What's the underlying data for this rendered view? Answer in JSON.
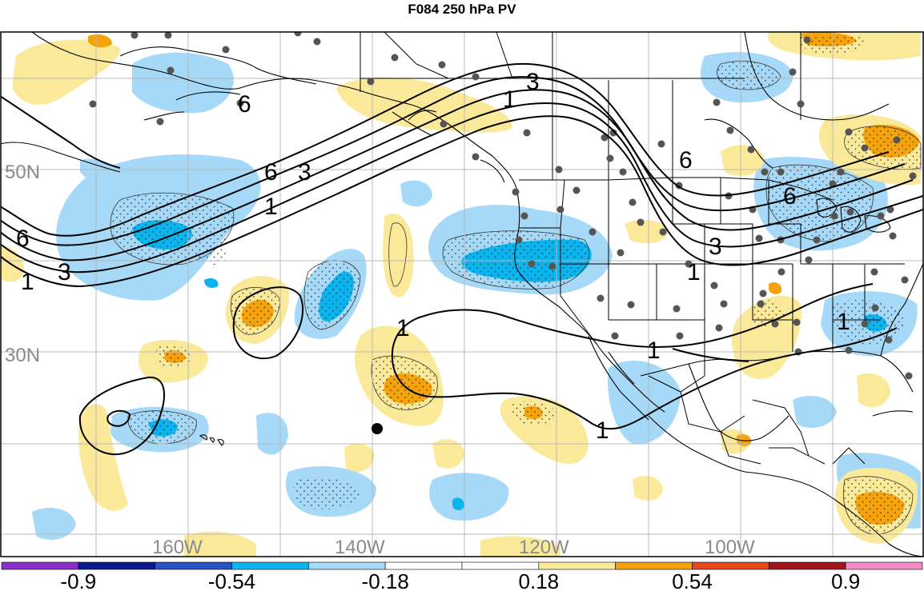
{
  "title": "F084 250 hPa PV",
  "map": {
    "lat_labels": [
      {
        "text": "50N",
        "lat": 50
      },
      {
        "text": "30N",
        "lat": 30
      }
    ],
    "lon_labels": [
      {
        "text": "160W",
        "lon": -160
      },
      {
        "text": "140W",
        "lon": -140
      },
      {
        "text": "120W",
        "lon": -120
      },
      {
        "text": "100W",
        "lon": -100
      }
    ],
    "contour_labels": [
      "6",
      "3",
      "1"
    ],
    "colors": {
      "neg_light": "#a6d9f7",
      "neg_mid": "#0ab4ee",
      "pos_light": "#fbe99a",
      "pos_mid": "#f5a20b",
      "land_outline": "#000000",
      "station": "#555555"
    }
  },
  "colorbar": {
    "colors": [
      "#8b2fc9",
      "#0d1a8c",
      "#2b52c4",
      "#0ab4ee",
      "#a6d9f7",
      "#ffffff",
      "#ffffff",
      "#fbe99a",
      "#f5a20b",
      "#e8481c",
      "#a3151d",
      "#f58cc8"
    ],
    "labels": [
      "-0.9",
      "-0.54",
      "-0.18",
      "0.18",
      "0.54",
      "0.9"
    ]
  }
}
